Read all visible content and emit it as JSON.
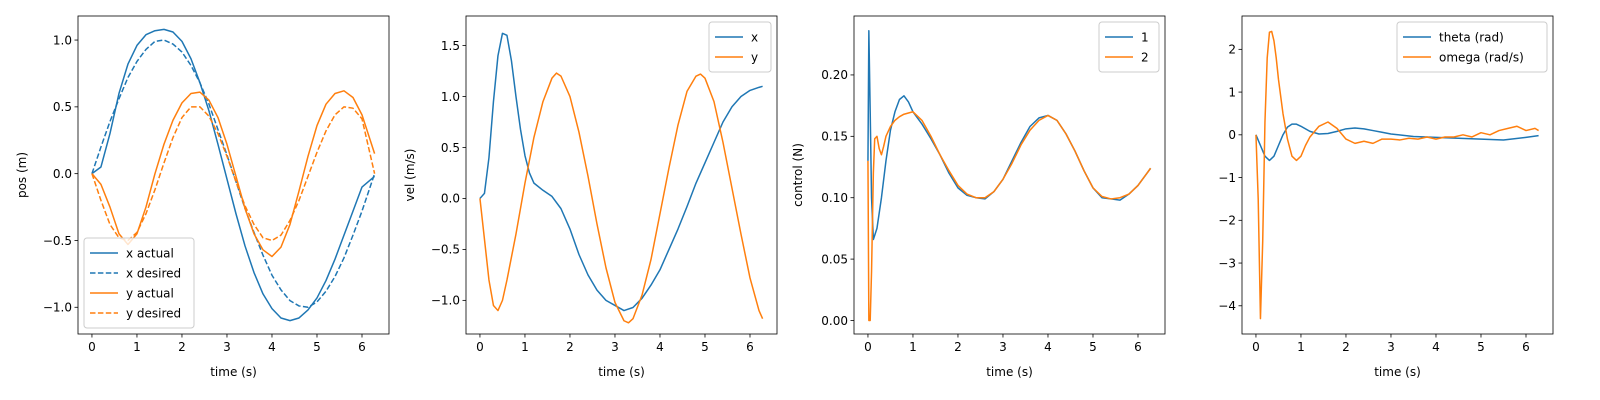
{
  "colors": {
    "blue": "#1f77b4",
    "orange": "#ff7f0e"
  },
  "chart_data": [
    {
      "type": "line",
      "xlabel": "time (s)",
      "ylabel": "pos (m)",
      "xlim": [
        -0.31,
        6.6
      ],
      "ylim": [
        -1.2,
        1.18
      ],
      "xticks": [
        0,
        1,
        2,
        3,
        4,
        5,
        6
      ],
      "xtick_labels": [
        "0",
        "1",
        "2",
        "3",
        "4",
        "5",
        "6"
      ],
      "yticks": [
        -1.0,
        -0.5,
        0.0,
        0.5,
        1.0
      ],
      "ytick_labels": [
        "−1.0",
        "−0.5",
        "0.0",
        "0.5",
        "1.0"
      ],
      "legend": "lower-left",
      "series": [
        {
          "name": "x actual",
          "color": "#1f77b4",
          "dash": "solid",
          "x": [
            0,
            0.2,
            0.4,
            0.6,
            0.8,
            1.0,
            1.2,
            1.4,
            1.6,
            1.8,
            2.0,
            2.2,
            2.4,
            2.6,
            2.8,
            3.0,
            3.2,
            3.4,
            3.6,
            3.8,
            4.0,
            4.2,
            4.4,
            4.6,
            4.8,
            5.0,
            5.2,
            5.4,
            5.6,
            5.8,
            6.0,
            6.28
          ],
          "y": [
            0,
            0.05,
            0.3,
            0.6,
            0.82,
            0.96,
            1.04,
            1.07,
            1.08,
            1.06,
            0.99,
            0.86,
            0.68,
            0.47,
            0.22,
            -0.04,
            -0.3,
            -0.54,
            -0.74,
            -0.9,
            -1.01,
            -1.08,
            -1.1,
            -1.08,
            -1.02,
            -0.93,
            -0.8,
            -0.64,
            -0.46,
            -0.28,
            -0.1,
            -0.02
          ]
        },
        {
          "name": "x desired",
          "color": "#1f77b4",
          "dash": "dashed",
          "x": [
            0,
            0.2,
            0.4,
            0.6,
            0.8,
            1.0,
            1.2,
            1.4,
            1.6,
            1.8,
            2.0,
            2.2,
            2.4,
            2.6,
            2.8,
            3.0,
            3.2,
            3.4,
            3.6,
            3.8,
            4.0,
            4.2,
            4.4,
            4.6,
            4.8,
            5.0,
            5.2,
            5.4,
            5.6,
            5.8,
            6.0,
            6.28
          ],
          "y": [
            0,
            0.2,
            0.39,
            0.56,
            0.72,
            0.84,
            0.93,
            0.99,
            1.0,
            0.97,
            0.91,
            0.81,
            0.68,
            0.52,
            0.33,
            0.14,
            -0.06,
            -0.26,
            -0.44,
            -0.61,
            -0.76,
            -0.87,
            -0.95,
            -0.99,
            -1.0,
            -0.96,
            -0.88,
            -0.77,
            -0.63,
            -0.46,
            -0.28,
            0
          ]
        },
        {
          "name": "y actual",
          "color": "#ff7f0e",
          "dash": "solid",
          "x": [
            0,
            0.2,
            0.4,
            0.6,
            0.8,
            1.0,
            1.2,
            1.4,
            1.6,
            1.8,
            2.0,
            2.2,
            2.4,
            2.6,
            2.8,
            3.0,
            3.2,
            3.4,
            3.6,
            3.8,
            4.0,
            4.2,
            4.4,
            4.6,
            4.8,
            5.0,
            5.2,
            5.4,
            5.6,
            5.8,
            6.0,
            6.28
          ],
          "y": [
            0,
            -0.08,
            -0.25,
            -0.45,
            -0.53,
            -0.45,
            -0.25,
            0.0,
            0.22,
            0.4,
            0.53,
            0.6,
            0.61,
            0.55,
            0.42,
            0.22,
            -0.02,
            -0.26,
            -0.45,
            -0.57,
            -0.62,
            -0.55,
            -0.38,
            -0.13,
            0.13,
            0.36,
            0.52,
            0.6,
            0.62,
            0.57,
            0.44,
            0.15
          ]
        },
        {
          "name": "y desired",
          "color": "#ff7f0e",
          "dash": "dashed",
          "x": [
            0,
            0.2,
            0.4,
            0.6,
            0.8,
            1.0,
            1.2,
            1.4,
            1.6,
            1.8,
            2.0,
            2.2,
            2.4,
            2.6,
            2.8,
            3.0,
            3.2,
            3.4,
            3.6,
            3.8,
            4.0,
            4.2,
            4.4,
            4.6,
            4.8,
            5.0,
            5.2,
            5.4,
            5.6,
            5.8,
            6.0,
            6.28
          ],
          "y": [
            0,
            -0.2,
            -0.38,
            -0.48,
            -0.5,
            -0.44,
            -0.3,
            -0.12,
            0.08,
            0.27,
            0.42,
            0.5,
            0.5,
            0.43,
            0.3,
            0.13,
            -0.06,
            -0.24,
            -0.38,
            -0.48,
            -0.5,
            -0.46,
            -0.35,
            -0.2,
            -0.02,
            0.16,
            0.32,
            0.44,
            0.5,
            0.49,
            0.41,
            0
          ]
        }
      ]
    },
    {
      "type": "line",
      "xlabel": "time (s)",
      "ylabel": "vel (m/s)",
      "xlim": [
        -0.31,
        6.6
      ],
      "ylim": [
        -1.33,
        1.79
      ],
      "xticks": [
        0,
        1,
        2,
        3,
        4,
        5,
        6
      ],
      "xtick_labels": [
        "0",
        "1",
        "2",
        "3",
        "4",
        "5",
        "6"
      ],
      "yticks": [
        -1.0,
        -0.5,
        0.0,
        0.5,
        1.0,
        1.5
      ],
      "ytick_labels": [
        "−1.0",
        "−0.5",
        "0.0",
        "0.5",
        "1.0",
        "1.5"
      ],
      "legend": "top-right",
      "series": [
        {
          "name": "x",
          "color": "#1f77b4",
          "dash": "solid",
          "x": [
            0,
            0.1,
            0.2,
            0.3,
            0.4,
            0.5,
            0.6,
            0.7,
            0.8,
            0.9,
            1.0,
            1.1,
            1.2,
            1.4,
            1.6,
            1.8,
            2.0,
            2.2,
            2.4,
            2.6,
            2.8,
            3.0,
            3.2,
            3.4,
            3.6,
            3.8,
            4.0,
            4.2,
            4.4,
            4.6,
            4.8,
            5.0,
            5.2,
            5.4,
            5.6,
            5.8,
            6.0,
            6.2,
            6.28
          ],
          "y": [
            0,
            0.05,
            0.4,
            0.95,
            1.4,
            1.62,
            1.6,
            1.35,
            1.0,
            0.68,
            0.42,
            0.25,
            0.15,
            0.08,
            0.02,
            -0.1,
            -0.3,
            -0.55,
            -0.75,
            -0.9,
            -1.0,
            -1.05,
            -1.1,
            -1.07,
            -0.98,
            -0.85,
            -0.7,
            -0.5,
            -0.3,
            -0.08,
            0.15,
            0.35,
            0.55,
            0.75,
            0.9,
            1.0,
            1.06,
            1.09,
            1.1
          ]
        },
        {
          "name": "y",
          "color": "#ff7f0e",
          "dash": "solid",
          "x": [
            0,
            0.1,
            0.2,
            0.3,
            0.4,
            0.5,
            0.6,
            0.8,
            1.0,
            1.2,
            1.4,
            1.6,
            1.7,
            1.8,
            2.0,
            2.2,
            2.4,
            2.6,
            2.8,
            3.0,
            3.2,
            3.3,
            3.4,
            3.6,
            3.8,
            4.0,
            4.2,
            4.4,
            4.6,
            4.8,
            4.9,
            5.0,
            5.2,
            5.4,
            5.6,
            5.8,
            6.0,
            6.2,
            6.28
          ],
          "y": [
            0,
            -0.4,
            -0.8,
            -1.05,
            -1.1,
            -1.0,
            -0.8,
            -0.35,
            0.15,
            0.6,
            0.95,
            1.18,
            1.23,
            1.2,
            1.0,
            0.65,
            0.22,
            -0.25,
            -0.68,
            -1.02,
            -1.2,
            -1.22,
            -1.18,
            -0.95,
            -0.6,
            -0.15,
            0.3,
            0.72,
            1.05,
            1.2,
            1.22,
            1.18,
            0.95,
            0.55,
            0.1,
            -0.35,
            -0.78,
            -1.1,
            -1.18
          ]
        }
      ]
    },
    {
      "type": "line",
      "xlabel": "time (s)",
      "ylabel": "control (N)",
      "xlim": [
        -0.31,
        6.6
      ],
      "ylim": [
        -0.011,
        0.248
      ],
      "xticks": [
        0,
        1,
        2,
        3,
        4,
        5,
        6
      ],
      "xtick_labels": [
        "0",
        "1",
        "2",
        "3",
        "4",
        "5",
        "6"
      ],
      "yticks": [
        0.0,
        0.05,
        0.1,
        0.15,
        0.2
      ],
      "ytick_labels": [
        "0.00",
        "0.05",
        "0.10",
        "0.15",
        "0.20"
      ],
      "legend": "top-right",
      "series": [
        {
          "name": "1",
          "color": "#1f77b4",
          "dash": "solid",
          "x": [
            0,
            0.02,
            0.05,
            0.08,
            0.12,
            0.2,
            0.3,
            0.4,
            0.5,
            0.6,
            0.7,
            0.8,
            0.9,
            1.0,
            1.2,
            1.4,
            1.6,
            1.8,
            2.0,
            2.2,
            2.4,
            2.6,
            2.8,
            3.0,
            3.2,
            3.4,
            3.6,
            3.8,
            4.0,
            4.2,
            4.4,
            4.6,
            4.8,
            5.0,
            5.2,
            5.4,
            5.6,
            5.8,
            6.0,
            6.2,
            6.28
          ],
          "y": [
            0.13,
            0.236,
            0.17,
            0.1,
            0.066,
            0.075,
            0.1,
            0.13,
            0.155,
            0.17,
            0.18,
            0.183,
            0.178,
            0.17,
            0.16,
            0.148,
            0.135,
            0.12,
            0.108,
            0.102,
            0.1,
            0.099,
            0.105,
            0.115,
            0.13,
            0.145,
            0.158,
            0.165,
            0.167,
            0.163,
            0.152,
            0.138,
            0.122,
            0.108,
            0.1,
            0.099,
            0.098,
            0.103,
            0.11,
            0.12,
            0.124
          ]
        },
        {
          "name": "2",
          "color": "#ff7f0e",
          "dash": "solid",
          "x": [
            0,
            0.02,
            0.05,
            0.08,
            0.12,
            0.15,
            0.2,
            0.25,
            0.3,
            0.35,
            0.4,
            0.5,
            0.6,
            0.7,
            0.8,
            0.9,
            1.0,
            1.2,
            1.4,
            1.6,
            1.8,
            2.0,
            2.2,
            2.4,
            2.6,
            2.8,
            3.0,
            3.2,
            3.4,
            3.6,
            3.8,
            4.0,
            4.2,
            4.4,
            4.6,
            4.8,
            5.0,
            5.2,
            5.4,
            5.6,
            5.8,
            6.0,
            6.2,
            6.28
          ],
          "y": [
            0.13,
            0.0,
            0.0,
            0.04,
            0.12,
            0.148,
            0.15,
            0.14,
            0.135,
            0.142,
            0.15,
            0.158,
            0.163,
            0.166,
            0.168,
            0.169,
            0.17,
            0.163,
            0.15,
            0.135,
            0.122,
            0.11,
            0.103,
            0.1,
            0.1,
            0.105,
            0.115,
            0.128,
            0.143,
            0.155,
            0.163,
            0.167,
            0.163,
            0.152,
            0.138,
            0.122,
            0.108,
            0.101,
            0.099,
            0.1,
            0.103,
            0.11,
            0.12,
            0.124
          ]
        }
      ]
    },
    {
      "type": "line",
      "xlabel": "time (s)",
      "ylabel": "",
      "xlim": [
        -0.31,
        6.6
      ],
      "ylim": [
        -4.66,
        2.78
      ],
      "xticks": [
        0,
        1,
        2,
        3,
        4,
        5,
        6
      ],
      "xtick_labels": [
        "0",
        "1",
        "2",
        "3",
        "4",
        "5",
        "6"
      ],
      "yticks": [
        -4,
        -3,
        -2,
        -1,
        0,
        1,
        2
      ],
      "ytick_labels": [
        "−4",
        "−3",
        "−2",
        "−1",
        "0",
        "1",
        "2"
      ],
      "legend": "top-right",
      "series": [
        {
          "name": "theta (rad)",
          "color": "#1f77b4",
          "dash": "solid",
          "x": [
            0,
            0.1,
            0.2,
            0.3,
            0.4,
            0.5,
            0.6,
            0.7,
            0.8,
            0.9,
            1.0,
            1.2,
            1.4,
            1.6,
            1.8,
            2.0,
            2.2,
            2.4,
            2.6,
            2.8,
            3.0,
            3.5,
            4.0,
            4.5,
            5.0,
            5.5,
            6.0,
            6.28
          ],
          "y": [
            0,
            -0.25,
            -0.5,
            -0.6,
            -0.5,
            -0.25,
            0.0,
            0.18,
            0.25,
            0.25,
            0.2,
            0.08,
            0.02,
            0.03,
            0.08,
            0.14,
            0.16,
            0.14,
            0.1,
            0.06,
            0.02,
            -0.04,
            -0.06,
            -0.08,
            -0.1,
            -0.12,
            -0.06,
            -0.02
          ]
        },
        {
          "name": "omega (rad/s)",
          "color": "#ff7f0e",
          "dash": "solid",
          "x": [
            0,
            0.05,
            0.1,
            0.15,
            0.2,
            0.25,
            0.3,
            0.35,
            0.4,
            0.45,
            0.5,
            0.6,
            0.7,
            0.8,
            0.9,
            1.0,
            1.1,
            1.2,
            1.4,
            1.6,
            1.8,
            2.0,
            2.2,
            2.4,
            2.6,
            2.8,
            3.0,
            3.2,
            3.4,
            3.6,
            3.8,
            4.0,
            4.2,
            4.4,
            4.6,
            4.8,
            5.0,
            5.2,
            5.4,
            5.6,
            5.8,
            6.0,
            6.2,
            6.28
          ],
          "y": [
            0,
            -1.5,
            -4.3,
            -2.5,
            0.3,
            1.8,
            2.4,
            2.42,
            2.2,
            1.8,
            1.3,
            0.5,
            -0.1,
            -0.5,
            -0.6,
            -0.5,
            -0.25,
            -0.05,
            0.2,
            0.3,
            0.15,
            -0.1,
            -0.2,
            -0.15,
            -0.2,
            -0.1,
            -0.1,
            -0.12,
            -0.08,
            -0.1,
            -0.05,
            -0.1,
            -0.05,
            -0.05,
            0.0,
            -0.05,
            0.05,
            0.0,
            0.1,
            0.15,
            0.2,
            0.1,
            0.15,
            0.1
          ]
        }
      ]
    }
  ]
}
